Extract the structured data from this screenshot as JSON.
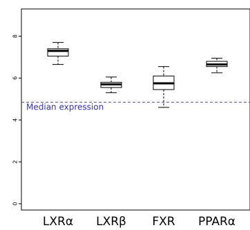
{
  "chart_data": {
    "type": "boxplot",
    "title": "",
    "xlabel": "",
    "ylabel": "",
    "categories": [
      "LXRα",
      "LXRβ",
      "FXR",
      "PPARα"
    ],
    "boxes": [
      {
        "category": "LXRα",
        "whisker_low": 6.65,
        "q1": 7.05,
        "median": 7.3,
        "q3": 7.4,
        "whisker_high": 7.7
      },
      {
        "category": "LXRβ",
        "whisker_low": 5.3,
        "q1": 5.55,
        "median": 5.7,
        "q3": 5.8,
        "whisker_high": 6.05
      },
      {
        "category": "FXR",
        "whisker_low": 4.6,
        "q1": 5.45,
        "median": 5.75,
        "q3": 6.1,
        "whisker_high": 6.55
      },
      {
        "category": "PPARα",
        "whisker_low": 6.25,
        "q1": 6.55,
        "median": 6.65,
        "q3": 6.8,
        "whisker_high": 6.95
      }
    ],
    "yticks": [
      0,
      2,
      4,
      6,
      8
    ],
    "ytick_labels": [
      "0",
      "2",
      "4",
      "6",
      "8"
    ],
    "ylim": [
      -0.3,
      9.3
    ],
    "grid": false,
    "reference_line": {
      "value": 4.85,
      "label": "Median expression",
      "color": "#4444cc",
      "style": "dashed"
    },
    "colors": {
      "axis": "#000000",
      "box": "#000000",
      "reference": "#4444cc",
      "annotation": "#2f2fd0"
    }
  }
}
